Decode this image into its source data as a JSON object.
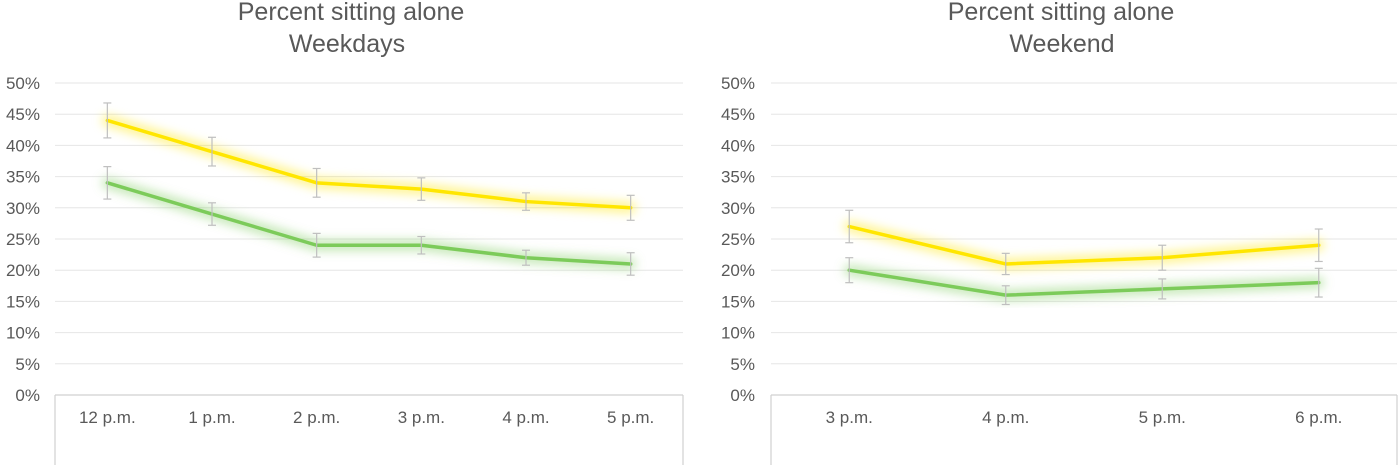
{
  "chart_data": [
    {
      "type": "line",
      "title": [
        "Percent sitting alone",
        "Weekdays"
      ],
      "categories": [
        "12 p.m.",
        "1 p.m.",
        "2 p.m.",
        "3 p.m.",
        "4 p.m.",
        "5 p.m."
      ],
      "ylim": [
        0,
        50
      ],
      "yticks": [
        "0%",
        "5%",
        "10%",
        "15%",
        "20%",
        "25%",
        "30%",
        "35%",
        "40%",
        "45%",
        "50%"
      ],
      "grid": true,
      "error_bars": true,
      "series": [
        {
          "color": "#FFE600",
          "values": [
            44,
            39,
            34,
            33,
            31,
            30
          ],
          "err": [
            2.8,
            2.3,
            2.3,
            1.8,
            1.4,
            2.0
          ]
        },
        {
          "color": "#7CCB5A",
          "values": [
            34,
            29,
            24,
            24,
            22,
            21
          ],
          "err": [
            2.6,
            1.8,
            1.9,
            1.4,
            1.2,
            1.8
          ]
        }
      ]
    },
    {
      "type": "line",
      "title": [
        "Percent sitting alone",
        "Weekend"
      ],
      "categories": [
        "3 p.m.",
        "4 p.m.",
        "5 p.m.",
        "6 p.m."
      ],
      "ylim": [
        0,
        50
      ],
      "yticks": [
        "0%",
        "5%",
        "10%",
        "15%",
        "20%",
        "25%",
        "30%",
        "35%",
        "40%",
        "45%",
        "50%"
      ],
      "grid": true,
      "error_bars": true,
      "series": [
        {
          "color": "#FFE600",
          "values": [
            27,
            21,
            22,
            24
          ],
          "err": [
            2.6,
            1.7,
            2.0,
            2.6
          ]
        },
        {
          "color": "#7CCB5A",
          "values": [
            20,
            16,
            17,
            18
          ],
          "err": [
            2.0,
            1.5,
            1.6,
            2.3
          ]
        }
      ]
    }
  ]
}
